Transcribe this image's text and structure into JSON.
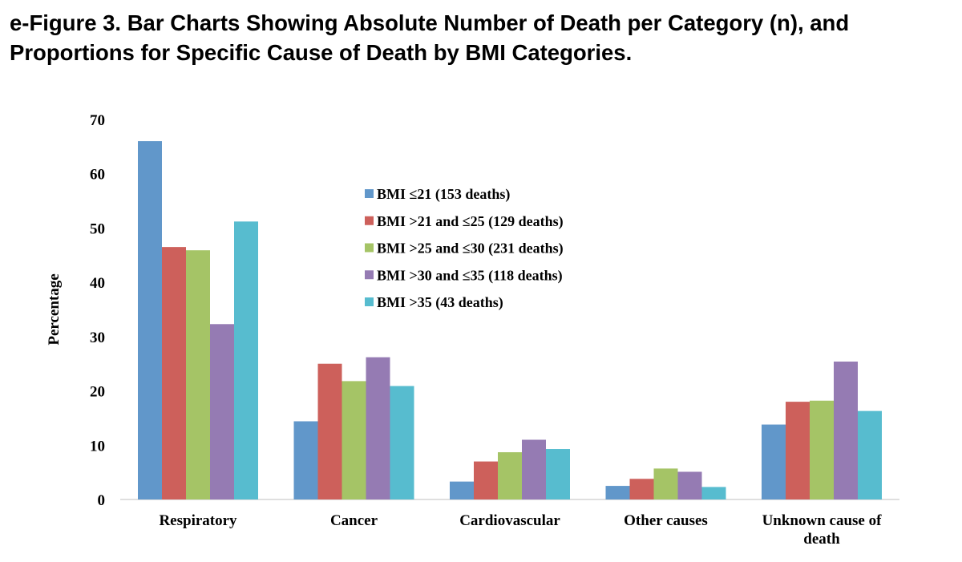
{
  "figure": {
    "title_line1": "e-Figure 3. Bar Charts Showing Absolute Number of Death per Category (n), and",
    "title_line2": "Proportions for Specific Cause of Death by BMI Categories."
  },
  "chart_data": {
    "type": "bar",
    "ylabel": "Percentage",
    "xlabel": "",
    "ylim": [
      0,
      70
    ],
    "yticks": [
      0,
      10,
      20,
      30,
      40,
      50,
      60,
      70
    ],
    "grid": false,
    "legend_position": "top-center",
    "categories": [
      [
        "Respiratory"
      ],
      [
        "Cancer"
      ],
      [
        "Cardiovascular"
      ],
      [
        "Other causes"
      ],
      [
        "Unknown cause of",
        "death"
      ]
    ],
    "series": [
      {
        "name": "BMI ≤21 (153 deaths)",
        "color": "#6197CA",
        "values": [
          66.0,
          14.4,
          3.3,
          2.5,
          13.8
        ]
      },
      {
        "name": "BMI >21 and  ≤25 (129 deaths)",
        "color": "#CD605B",
        "values": [
          46.5,
          25.0,
          7.0,
          3.8,
          18.0
        ]
      },
      {
        "name": "BMI >25 and  ≤30 (231 deaths)",
        "color": "#A5C466",
        "values": [
          45.9,
          21.8,
          8.7,
          5.7,
          18.2
        ]
      },
      {
        "name": "BMI >30 and  ≤35 (118 deaths)",
        "color": "#957BB3",
        "values": [
          32.3,
          26.2,
          11.0,
          5.1,
          25.4
        ]
      },
      {
        "name": "BMI >35  (43 deaths)",
        "color": "#57BCCF",
        "values": [
          51.2,
          20.9,
          9.3,
          2.3,
          16.3
        ]
      }
    ]
  }
}
